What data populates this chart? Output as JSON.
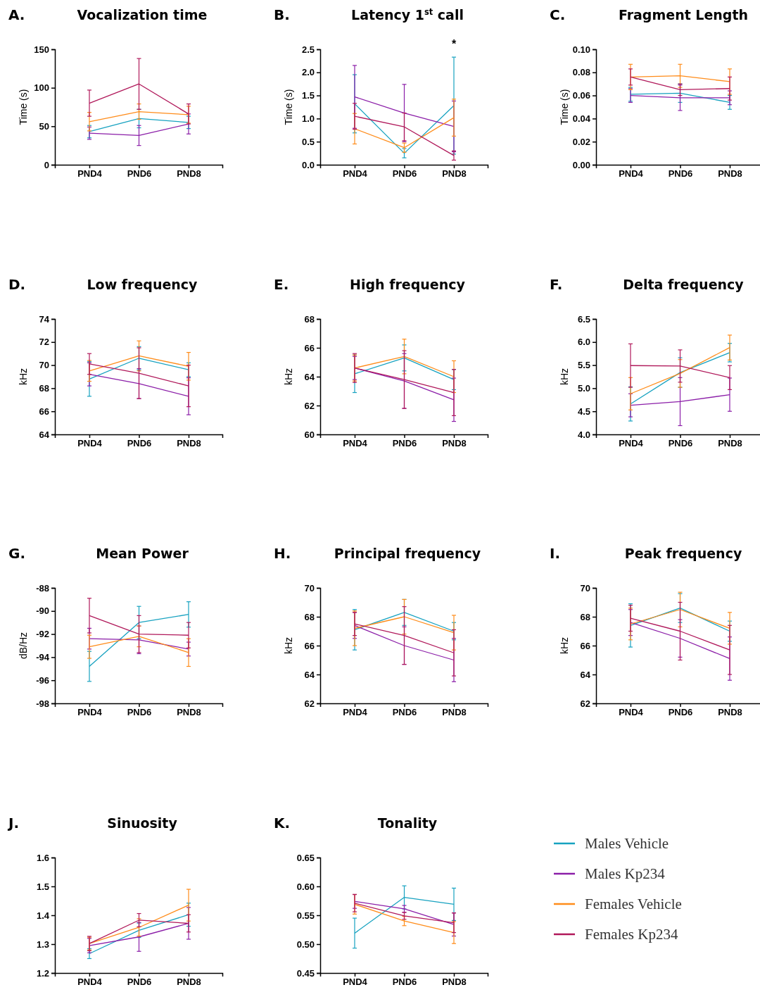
{
  "chart_data": [
    {
      "type": "line",
      "title": "Vocalization time",
      "ylabel": "Time (s)",
      "annotations": [
        "A."
      ],
      "categories": [
        "PND4",
        "PND6",
        "PND8"
      ],
      "ylim": [
        0,
        150
      ],
      "yticks": [
        0,
        50,
        100,
        150
      ],
      "series": [
        {
          "color": "#17a2c0",
          "values": [
            43,
            60,
            55
          ],
          "errors": [
            8,
            12,
            8
          ]
        },
        {
          "color": "#8b1ea8",
          "values": [
            41,
            38,
            53
          ],
          "errors": [
            8,
            13,
            13
          ]
        },
        {
          "color": "#ff8c1a",
          "values": [
            56,
            69,
            65
          ],
          "errors": [
            12,
            10,
            11
          ]
        },
        {
          "color": "#b0185a",
          "values": [
            80,
            105,
            66
          ],
          "errors": [
            17,
            33,
            13
          ]
        }
      ]
    },
    {
      "type": "line",
      "title": "Latency 1$^{st}$ call",
      "ylabel": "Time (s)",
      "annotations": [
        "B.",
        "*"
      ],
      "categories": [
        "PND4",
        "PND6",
        "PND8"
      ],
      "ylim": [
        0,
        2.5
      ],
      "yticks": [
        {
          "value": 0,
          "label": "0.0"
        },
        {
          "value": 0.5,
          "label": "0.5"
        },
        {
          "value": 1,
          "label": "1.0"
        },
        {
          "value": 1.5,
          "label": "1.5"
        },
        {
          "value": 2,
          "label": "2.0"
        },
        {
          "value": 2.5,
          "label": "2.5"
        }
      ],
      "series": [
        {
          "color": "#17a2c0",
          "values": [
            1.32,
            0.25,
            1.28
          ],
          "errors": [
            0.63,
            0.1,
            1.05
          ]
        },
        {
          "color": "#8b1ea8",
          "values": [
            1.47,
            1.12,
            0.83
          ],
          "errors": [
            0.68,
            0.62,
            0.55
          ]
        },
        {
          "color": "#ff8c1a",
          "values": [
            0.78,
            0.37,
            1.02
          ],
          "errors": [
            0.33,
            0.1,
            0.4
          ]
        },
        {
          "color": "#b0185a",
          "values": [
            1.05,
            0.82,
            0.2
          ],
          "errors": [
            0.28,
            0.3,
            0.1
          ]
        }
      ]
    },
    {
      "type": "line",
      "title": "Fragment Length",
      "ylabel": "Time (s)",
      "annotations": [
        "C."
      ],
      "categories": [
        "PND4",
        "PND6",
        "PND8"
      ],
      "ylim": [
        0,
        0.1
      ],
      "yticks": [
        {
          "value": 0,
          "label": "0.00"
        },
        {
          "value": 0.02,
          "label": "0.02"
        },
        {
          "value": 0.04,
          "label": "0.04"
        },
        {
          "value": 0.06,
          "label": "0.06"
        },
        {
          "value": 0.08,
          "label": "0.08"
        },
        {
          "value": 0.1,
          "label": "0.10"
        }
      ],
      "series": [
        {
          "color": "#17a2c0",
          "values": [
            0.061,
            0.062,
            0.054
          ],
          "errors": [
            0.006,
            0.008,
            0.006
          ]
        },
        {
          "color": "#8b1ea8",
          "values": [
            0.06,
            0.058,
            0.058
          ],
          "errors": [
            0.006,
            0.011,
            0.006
          ]
        },
        {
          "color": "#ff8c1a",
          "values": [
            0.076,
            0.077,
            0.072
          ],
          "errors": [
            0.011,
            0.01,
            0.011
          ]
        },
        {
          "color": "#b0185a",
          "values": [
            0.076,
            0.065,
            0.066
          ],
          "errors": [
            0.007,
            0.005,
            0.01
          ]
        }
      ]
    },
    {
      "type": "line",
      "title": "Low frequency",
      "ylabel": "kHz",
      "annotations": [
        "D."
      ],
      "categories": [
        "PND4",
        "PND6",
        "PND8"
      ],
      "ylim": [
        64,
        74
      ],
      "yticks": [
        64,
        66,
        68,
        70,
        72,
        74
      ],
      "series": [
        {
          "color": "#17a2c0",
          "values": [
            68.8,
            70.6,
            69.6
          ],
          "errors": [
            1.5,
            1.0,
            0.6
          ]
        },
        {
          "color": "#8b1ea8",
          "values": [
            69.2,
            68.4,
            67.3
          ],
          "errors": [
            1.0,
            1.3,
            1.6
          ]
        },
        {
          "color": "#ff8c1a",
          "values": [
            69.5,
            70.8,
            69.9
          ],
          "errors": [
            0.9,
            1.3,
            1.2
          ]
        },
        {
          "color": "#b0185a",
          "values": [
            70.1,
            69.3,
            68.2
          ],
          "errors": [
            0.9,
            2.2,
            1.8
          ]
        }
      ]
    },
    {
      "type": "line",
      "title": "High frequency",
      "ylabel": "kHz",
      "annotations": [
        "E."
      ],
      "categories": [
        "PND4",
        "PND6",
        "PND8"
      ],
      "ylim": [
        60,
        68
      ],
      "yticks": [
        60,
        62,
        64,
        66,
        68
      ],
      "series": [
        {
          "color": "#17a2c0",
          "values": [
            64.2,
            65.3,
            63.8
          ],
          "errors": [
            1.3,
            0.9,
            0.7
          ]
        },
        {
          "color": "#8b1ea8",
          "values": [
            64.6,
            63.7,
            62.4
          ],
          "errors": [
            0.8,
            1.9,
            1.5
          ]
        },
        {
          "color": "#ff8c1a",
          "values": [
            64.6,
            65.4,
            64.0
          ],
          "errors": [
            0.9,
            1.2,
            1.1
          ]
        },
        {
          "color": "#b0185a",
          "values": [
            64.6,
            63.8,
            62.9
          ],
          "errors": [
            1.0,
            2.0,
            1.6
          ]
        }
      ]
    },
    {
      "type": "line",
      "title": "Delta frequency",
      "ylabel": "kHz",
      "annotations": [
        "F."
      ],
      "categories": [
        "PND4",
        "PND6",
        "PND8"
      ],
      "ylim": [
        4,
        6.5
      ],
      "yticks": [
        {
          "value": 4,
          "label": "4.0"
        },
        {
          "value": 4.5,
          "label": "4.5"
        },
        {
          "value": 5,
          "label": "5.0"
        },
        {
          "value": 5.5,
          "label": "5.5"
        },
        {
          "value": 6,
          "label": "6.0"
        },
        {
          "value": 6.5,
          "label": "6.5"
        }
      ],
      "series": [
        {
          "color": "#17a2c0",
          "values": [
            4.66,
            5.34,
            5.77
          ],
          "errors": [
            0.37,
            0.32,
            0.2
          ]
        },
        {
          "color": "#8b1ea8",
          "values": [
            4.63,
            4.71,
            4.86
          ],
          "errors": [
            0.25,
            0.52,
            0.36
          ]
        },
        {
          "color": "#ff8c1a",
          "values": [
            4.88,
            5.32,
            5.88
          ],
          "errors": [
            0.35,
            0.3,
            0.27
          ]
        },
        {
          "color": "#b0185a",
          "values": [
            5.49,
            5.48,
            5.23
          ],
          "errors": [
            0.47,
            0.35,
            0.26
          ]
        }
      ]
    },
    {
      "type": "line",
      "title": "Mean Power",
      "ylabel": "dB/Hz",
      "annotations": [
        "G."
      ],
      "categories": [
        "PND4",
        "PND6",
        "PND8"
      ],
      "ylim": [
        -98,
        -88
      ],
      "yticks": [
        -98,
        -96,
        -94,
        -92,
        -90,
        -88
      ],
      "series": [
        {
          "color": "#17a2c0",
          "values": [
            -94.8,
            -91.0,
            -90.3
          ],
          "errors": [
            1.3,
            1.4,
            1.1
          ]
        },
        {
          "color": "#8b1ea8",
          "values": [
            -92.4,
            -92.5,
            -93.3
          ],
          "errors": [
            0.9,
            1.2,
            0.6
          ]
        },
        {
          "color": "#ff8c1a",
          "values": [
            -93.1,
            -92.2,
            -93.6
          ],
          "errors": [
            1.0,
            0.9,
            1.2
          ]
        },
        {
          "color": "#b0185a",
          "values": [
            -90.4,
            -92.0,
            -92.1
          ],
          "errors": [
            1.5,
            1.6,
            1.1
          ]
        }
      ]
    },
    {
      "type": "line",
      "title": "Principal frequency",
      "ylabel": "kHz",
      "annotations": [
        "H."
      ],
      "categories": [
        "PND4",
        "PND6",
        "PND8"
      ],
      "ylim": [
        62,
        70
      ],
      "yticks": [
        62,
        64,
        66,
        68,
        70
      ],
      "series": [
        {
          "color": "#17a2c0",
          "values": [
            67.1,
            68.3,
            67.0
          ],
          "errors": [
            1.4,
            0.9,
            0.6
          ]
        },
        {
          "color": "#8b1ea8",
          "values": [
            67.4,
            66.0,
            65.0
          ],
          "errors": [
            0.9,
            1.3,
            1.5
          ]
        },
        {
          "color": "#ff8c1a",
          "values": [
            67.2,
            68.0,
            66.9
          ],
          "errors": [
            1.2,
            1.2,
            1.2
          ]
        },
        {
          "color": "#b0185a",
          "values": [
            67.5,
            66.7,
            65.5
          ],
          "errors": [
            0.8,
            2.0,
            1.6
          ]
        }
      ]
    },
    {
      "type": "line",
      "title": "Peak frequency",
      "ylabel": "kHz",
      "annotations": [
        "I."
      ],
      "categories": [
        "PND4",
        "PND6",
        "PND8"
      ],
      "ylim": [
        62,
        70
      ],
      "yticks": [
        62,
        64,
        66,
        68,
        70
      ],
      "series": [
        {
          "color": "#17a2c0",
          "values": [
            67.4,
            68.6,
            67.0
          ],
          "errors": [
            1.5,
            1.0,
            0.7
          ]
        },
        {
          "color": "#8b1ea8",
          "values": [
            67.6,
            66.5,
            65.1
          ],
          "errors": [
            0.9,
            1.3,
            1.5
          ]
        },
        {
          "color": "#ff8c1a",
          "values": [
            67.5,
            68.5,
            67.2
          ],
          "errors": [
            1.1,
            1.2,
            1.1
          ]
        },
        {
          "color": "#b0185a",
          "values": [
            67.9,
            67.0,
            65.7
          ],
          "errors": [
            0.9,
            2.0,
            1.7
          ]
        }
      ]
    },
    {
      "type": "line",
      "title": "Sinuosity",
      "annotations": [
        "J."
      ],
      "categories": [
        "PND4",
        "PND6",
        "PND8"
      ],
      "ylim": [
        1.2,
        1.6
      ],
      "yticks": [
        1.2,
        1.3,
        1.4,
        1.5,
        1.6
      ],
      "series": [
        {
          "color": "#17a2c0",
          "values": [
            1.267,
            1.348,
            1.402
          ],
          "errors": [
            0.017,
            0.025,
            0.04
          ]
        },
        {
          "color": "#8b1ea8",
          "values": [
            1.295,
            1.325,
            1.372
          ],
          "errors": [
            0.025,
            0.05,
            0.055
          ]
        },
        {
          "color": "#ff8c1a",
          "values": [
            1.302,
            1.358,
            1.435
          ],
          "errors": [
            0.022,
            0.03,
            0.055
          ]
        },
        {
          "color": "#b0185a",
          "values": [
            1.302,
            1.383,
            1.372
          ],
          "errors": [
            0.025,
            0.023,
            0.03
          ]
        }
      ]
    },
    {
      "type": "line",
      "title": "Tonality",
      "annotations": [
        "K."
      ],
      "categories": [
        "PND4",
        "PND6",
        "PND8"
      ],
      "ylim": [
        0.45,
        0.65
      ],
      "yticks": [
        0.45,
        {
          "value": 0.5,
          "label": "0.50"
        },
        0.55,
        {
          "value": 0.6,
          "label": "0.60"
        },
        0.65
      ],
      "legend": "right",
      "series": [
        {
          "name": "Males Vehicle",
          "color": "#17a2c0",
          "values": [
            0.519,
            0.581,
            0.569
          ],
          "errors": [
            0.026,
            0.02,
            0.028
          ]
        },
        {
          "name": "Males Kp234",
          "color": "#8b1ea8",
          "values": [
            0.574,
            0.561,
            0.534
          ],
          "errors": [
            0.012,
            0.006,
            0.02
          ]
        },
        {
          "name": "Females Vehicle",
          "color": "#ff8c1a",
          "values": [
            0.569,
            0.54,
            0.52
          ],
          "errors": [
            0.017,
            0.008,
            0.019
          ]
        },
        {
          "name": "Females Kp234",
          "color": "#b0185a",
          "values": [
            0.571,
            0.549,
            0.537
          ],
          "errors": [
            0.015,
            0.006,
            0.017
          ]
        }
      ]
    }
  ]
}
